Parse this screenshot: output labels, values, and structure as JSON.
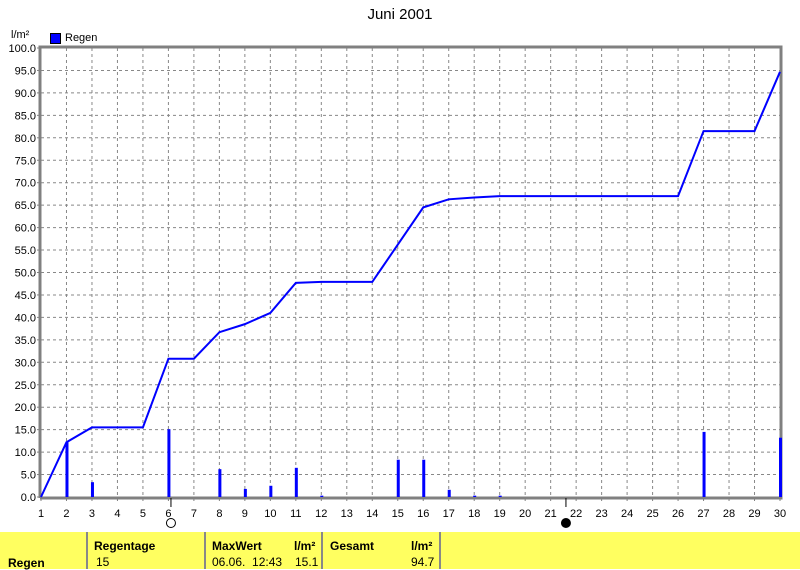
{
  "chart_data": {
    "type": "bar+line",
    "title": "Juni 2001",
    "ylabel": "l/m²",
    "ylim": [
      0,
      100
    ],
    "xlim": [
      1,
      30
    ],
    "yticks": [
      "0.0",
      "5.0",
      "10.0",
      "15.0",
      "20.0",
      "25.0",
      "30.0",
      "35.0",
      "40.0",
      "45.0",
      "50.0",
      "55.0",
      "60.0",
      "65.0",
      "70.0",
      "75.0",
      "80.0",
      "85.0",
      "90.0",
      "95.0",
      "100.0"
    ],
    "grid": true,
    "legend": {
      "position": "top-left",
      "entries": [
        "Regen"
      ]
    },
    "series": [
      {
        "name": "Regen",
        "type": "bar",
        "color": "#0000ff",
        "x": [
          2,
          3,
          6,
          8,
          9,
          10,
          11,
          12,
          15,
          16,
          17,
          18,
          19,
          27,
          30
        ],
        "values": [
          12.2,
          3.3,
          15.1,
          6.2,
          1.8,
          2.5,
          6.5,
          0.3,
          8.3,
          8.3,
          1.6,
          0.3,
          0.3,
          14.5,
          13.2
        ]
      },
      {
        "type": "line",
        "color": "#0000ff",
        "x": [
          1,
          2,
          3,
          5,
          6,
          7,
          8,
          9,
          10,
          11,
          12,
          14,
          16,
          17,
          18,
          19,
          26,
          27,
          29,
          30
        ],
        "values": [
          0,
          12.2,
          15.5,
          15.5,
          30.8,
          30.8,
          36.7,
          38.5,
          41.0,
          47.7,
          47.9,
          47.9,
          64.5,
          66.3,
          66.7,
          67.0,
          67.0,
          81.5,
          81.5,
          94.7
        ]
      }
    ],
    "moon_phases": [
      {
        "phase": "full-moon",
        "day": 6.1
      },
      {
        "phase": "new-moon",
        "day": 21.6
      }
    ]
  },
  "footer": {
    "row_label": "Regen",
    "regentage_label": "Regentage",
    "regentage_value": "15",
    "maxwert_label": "MaxWert",
    "maxwert_unit": "l/m²",
    "maxwert_date": "06.06.  12:43",
    "maxwert_value": "15.1",
    "gesamt_label": "Gesamt",
    "gesamt_unit": "l/m²",
    "gesamt_value": "94.7"
  }
}
